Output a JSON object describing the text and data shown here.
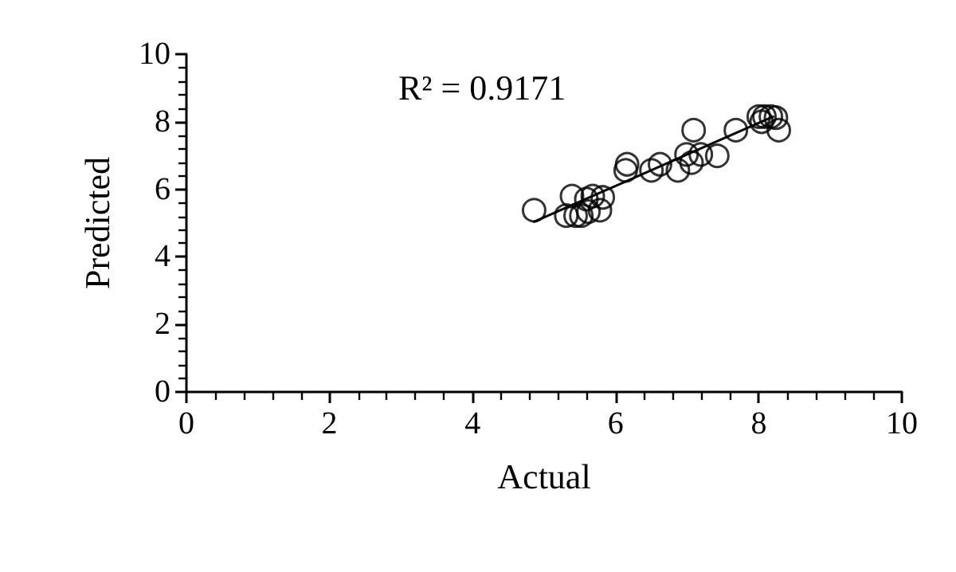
{
  "chart_data": {
    "type": "scatter",
    "xlabel": "Actual",
    "ylabel": "Predicted",
    "annotations": [
      "R² = 0.9171"
    ],
    "xlim": [
      0,
      10
    ],
    "ylim": [
      0,
      10
    ],
    "xticks": [
      0,
      2,
      4,
      6,
      8,
      10
    ],
    "yticks": [
      0,
      2,
      4,
      6,
      8,
      10
    ],
    "grid": false,
    "marker": "circle",
    "series": [
      {
        "color": "#000000",
        "x": [
          4.86,
          5.31,
          5.39,
          5.44,
          5.52,
          5.59,
          5.62,
          5.68,
          5.78,
          5.82,
          6.14,
          6.16,
          6.5,
          6.62,
          6.87,
          6.99,
          7.06,
          7.09,
          7.19,
          7.42,
          7.68,
          8.0,
          8.04,
          8.08,
          8.17,
          8.24,
          8.28
        ],
        "values": [
          5.38,
          5.22,
          5.8,
          5.22,
          5.22,
          5.71,
          5.34,
          5.8,
          5.38,
          5.76,
          6.56,
          6.74,
          6.56,
          6.74,
          6.56,
          7.03,
          6.79,
          7.75,
          7.03,
          6.99,
          7.75,
          8.15,
          8.0,
          8.15,
          8.15,
          8.12,
          7.75
        ]
      },
      {
        "type": "line",
        "color": "#000000",
        "marker": "none",
        "line_style": "solid",
        "x": [
          4.86,
          8.2
        ],
        "values": [
          5.04,
          8.15
        ]
      }
    ]
  }
}
